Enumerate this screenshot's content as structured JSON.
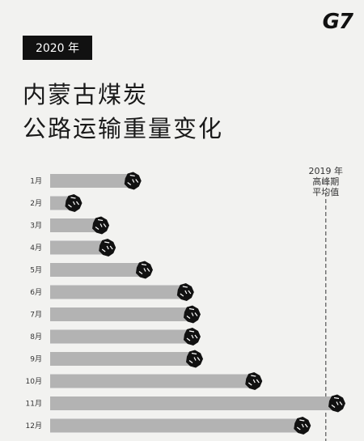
{
  "header": {
    "logo_text": "G7",
    "year_badge": "2020 年",
    "title_line1": "内蒙古煤炭",
    "title_line2": "公路运输重量变化"
  },
  "chart_data": {
    "type": "bar",
    "orientation": "horizontal",
    "categories": [
      "1月",
      "2月",
      "3月",
      "4月",
      "5月",
      "6月",
      "7月",
      "8月",
      "9月",
      "10月",
      "11月",
      "12月"
    ],
    "values": [
      100,
      28,
      61,
      69,
      114,
      164,
      172,
      172,
      175,
      247,
      348,
      306
    ],
    "value_max": 348,
    "reference_line": {
      "label_lines": [
        "2019 年",
        "高峰期",
        "平均值"
      ],
      "value": 335
    },
    "colors": {
      "bar": "#b3b3b3",
      "marker": "#111111",
      "reference": "#555555"
    }
  }
}
